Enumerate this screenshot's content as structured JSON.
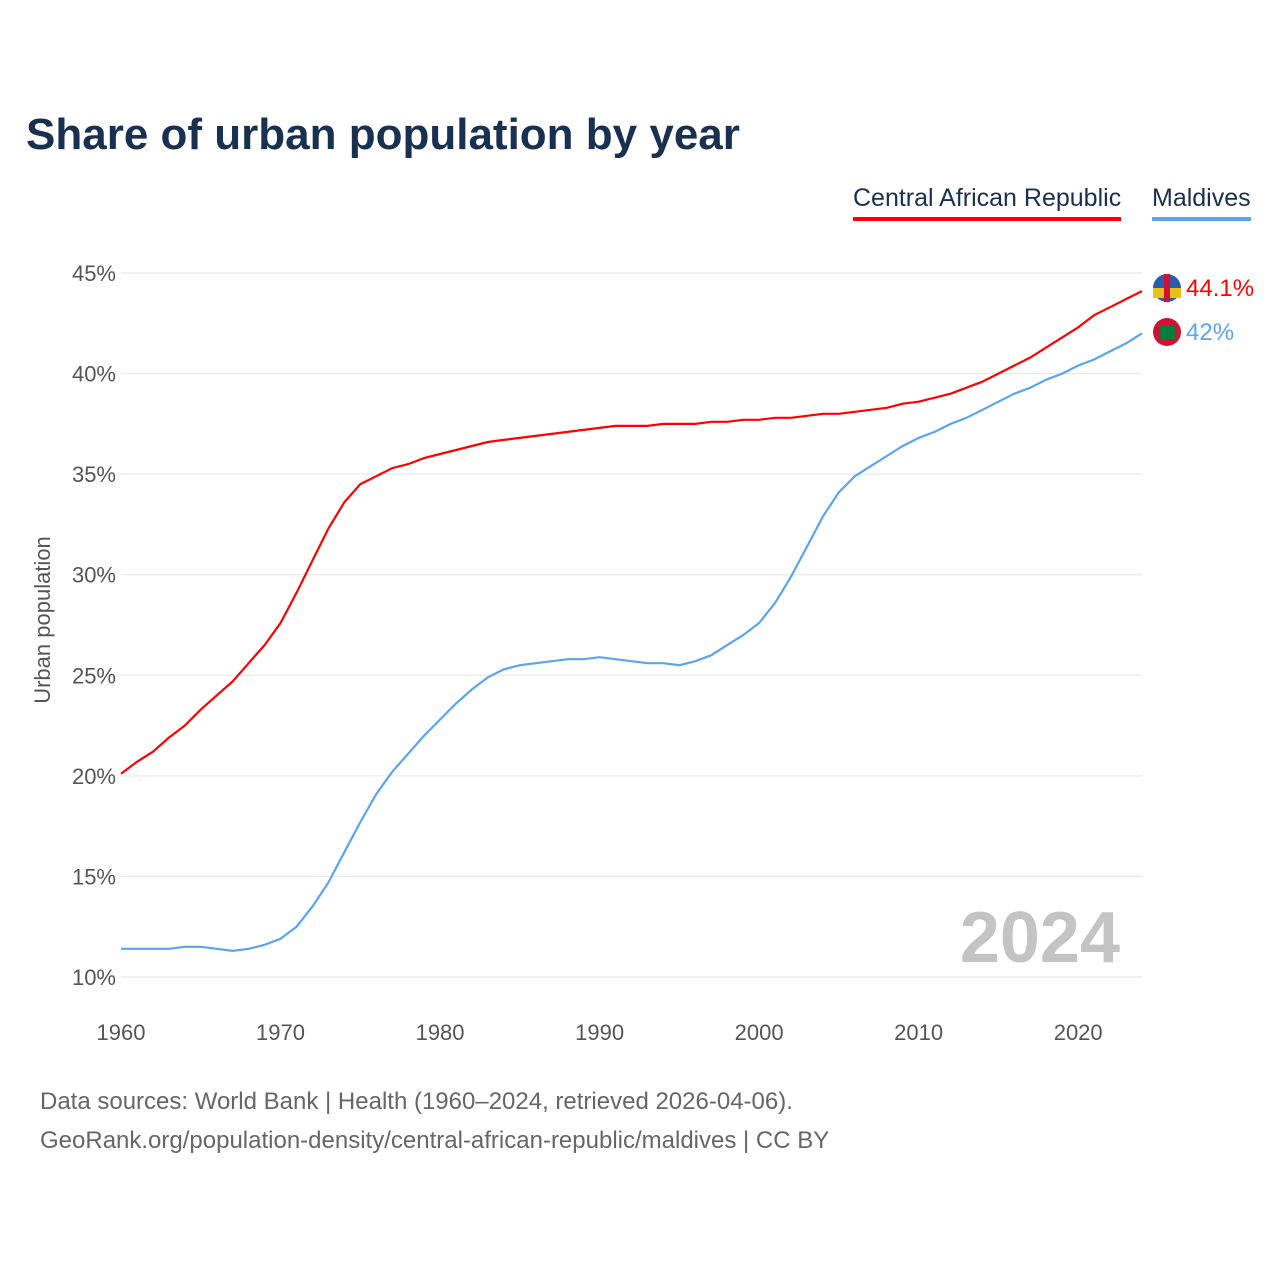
{
  "chart_data": {
    "type": "line",
    "title": "Share of urban population by year",
    "ylabel": "Urban population",
    "xlabel": "",
    "xlim": [
      1960,
      2024
    ],
    "ylim": [
      10,
      45
    ],
    "yticks": [
      "10%",
      "15%",
      "20%",
      "25%",
      "30%",
      "35%",
      "40%",
      "45%"
    ],
    "xticks": [
      "1960",
      "1970",
      "1980",
      "1990",
      "2000",
      "2010",
      "2020"
    ],
    "current_year": "2024",
    "x": [
      1960,
      1961,
      1962,
      1963,
      1964,
      1965,
      1966,
      1967,
      1968,
      1969,
      1970,
      1971,
      1972,
      1973,
      1974,
      1975,
      1976,
      1977,
      1978,
      1979,
      1980,
      1981,
      1982,
      1983,
      1984,
      1985,
      1986,
      1987,
      1988,
      1989,
      1990,
      1991,
      1992,
      1993,
      1994,
      1995,
      1996,
      1997,
      1998,
      1999,
      2000,
      2001,
      2002,
      2003,
      2004,
      2005,
      2006,
      2007,
      2008,
      2009,
      2010,
      2011,
      2012,
      2013,
      2014,
      2015,
      2016,
      2017,
      2018,
      2019,
      2020,
      2021,
      2022,
      2023,
      2024
    ],
    "series": [
      {
        "name": "Central African Republic",
        "color": "#ff0000",
        "end_label": "44.1%",
        "values": [
          20.1,
          20.7,
          21.2,
          21.9,
          22.5,
          23.3,
          24.0,
          24.7,
          25.6,
          26.5,
          27.6,
          29.1,
          30.7,
          32.3,
          33.6,
          34.5,
          34.9,
          35.3,
          35.5,
          35.8,
          36.0,
          36.2,
          36.4,
          36.6,
          36.7,
          36.8,
          36.9,
          37.0,
          37.1,
          37.2,
          37.3,
          37.4,
          37.4,
          37.4,
          37.5,
          37.5,
          37.5,
          37.6,
          37.6,
          37.7,
          37.7,
          37.8,
          37.8,
          37.9,
          38.0,
          38.0,
          38.1,
          38.2,
          38.3,
          38.5,
          38.6,
          38.8,
          39.0,
          39.3,
          39.6,
          40.0,
          40.4,
          40.8,
          41.3,
          41.8,
          42.3,
          42.9,
          43.3,
          43.7,
          44.1
        ]
      },
      {
        "name": "Maldives",
        "color": "#5ba4ee",
        "end_label": "42%",
        "values": [
          11.4,
          11.4,
          11.4,
          11.4,
          11.5,
          11.5,
          11.4,
          11.3,
          11.4,
          11.6,
          11.9,
          12.5,
          13.5,
          14.7,
          16.2,
          17.7,
          19.1,
          20.2,
          21.1,
          22.0,
          22.8,
          23.6,
          24.3,
          24.9,
          25.3,
          25.5,
          25.6,
          25.7,
          25.8,
          25.8,
          25.9,
          25.8,
          25.7,
          25.6,
          25.6,
          25.5,
          25.7,
          26.0,
          26.5,
          27.0,
          27.6,
          28.6,
          29.9,
          31.4,
          32.9,
          34.1,
          34.9,
          35.4,
          35.9,
          36.4,
          36.8,
          37.1,
          37.5,
          37.8,
          38.2,
          38.6,
          39.0,
          39.3,
          39.7,
          40.0,
          40.4,
          40.7,
          41.1,
          41.5,
          42.0
        ]
      }
    ],
    "legend": "top-right",
    "grid": true
  },
  "source": {
    "line1": "Data sources: World Bank | Health (1960–2024, retrieved 2026-04-06).",
    "line2": "GeoRank.org/population-density/central-african-republic/maldives | CC BY"
  }
}
